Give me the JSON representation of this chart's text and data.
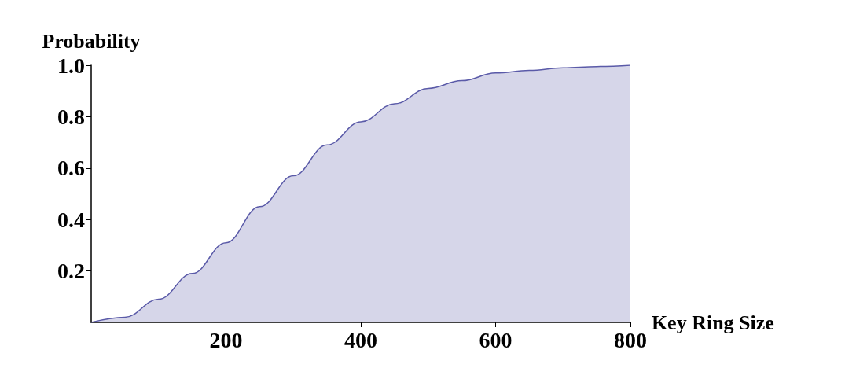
{
  "chart_data": {
    "type": "area",
    "xlabel": "Key Ring Size",
    "ylabel": "Probability",
    "x": [
      0,
      50,
      100,
      150,
      200,
      250,
      300,
      350,
      400,
      450,
      500,
      550,
      600,
      650,
      700,
      750,
      800
    ],
    "series": [
      {
        "color": "#5a5aa8",
        "values": [
          0,
          0.02,
          0.09,
          0.19,
          0.31,
          0.45,
          0.57,
          0.69,
          0.78,
          0.85,
          0.91,
          0.94,
          0.97,
          0.98,
          0.99,
          0.995,
          1.0
        ]
      }
    ],
    "xlim": [
      0,
      800
    ],
    "xticks": [
      200,
      400,
      600,
      800
    ],
    "ylim": [
      0,
      1.0
    ],
    "yticks": [
      0.2,
      0.4,
      0.6,
      0.8,
      {
        "value": 1,
        "label": "1.0"
      }
    ],
    "grid": false,
    "marker": "none",
    "line_style": "solid"
  }
}
